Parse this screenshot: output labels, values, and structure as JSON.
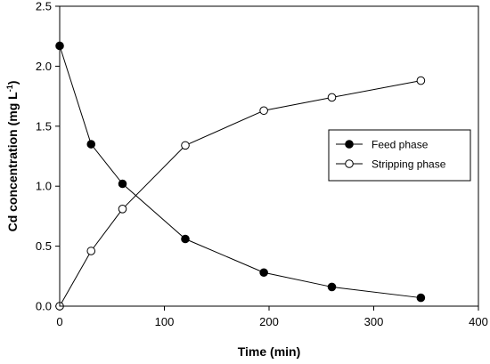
{
  "chart_data": {
    "type": "line",
    "title": "",
    "xlabel": "Time (min)",
    "ylabel": "Cd concentration (mg L",
    "ylabel_sup": "-1",
    "ylabel_end": ")",
    "xlim": [
      0,
      400
    ],
    "ylim": [
      0,
      2.5
    ],
    "xticks": [
      0,
      100,
      200,
      300,
      400
    ],
    "yticks": [
      0.0,
      0.5,
      1.0,
      1.5,
      2.0,
      2.5
    ],
    "xtick_labels": [
      "0",
      "100",
      "200",
      "300",
      "400"
    ],
    "ytick_labels": [
      "0.0",
      "0.5",
      "1.0",
      "1.5",
      "2.0",
      "2.5"
    ],
    "grid": false,
    "legend_position": "right-middle",
    "series": [
      {
        "name": "Feed phase",
        "marker": "filled-circle",
        "color": "#000000",
        "x": [
          0,
          30,
          60,
          120,
          195,
          260,
          345
        ],
        "y": [
          2.17,
          1.35,
          1.02,
          0.56,
          0.28,
          0.16,
          0.07
        ]
      },
      {
        "name": "Stripping phase",
        "marker": "open-circle",
        "color": "#000000",
        "x": [
          0,
          30,
          60,
          120,
          195,
          260,
          345
        ],
        "y": [
          0.0,
          0.46,
          0.81,
          1.34,
          1.63,
          1.74,
          1.88
        ]
      }
    ]
  }
}
